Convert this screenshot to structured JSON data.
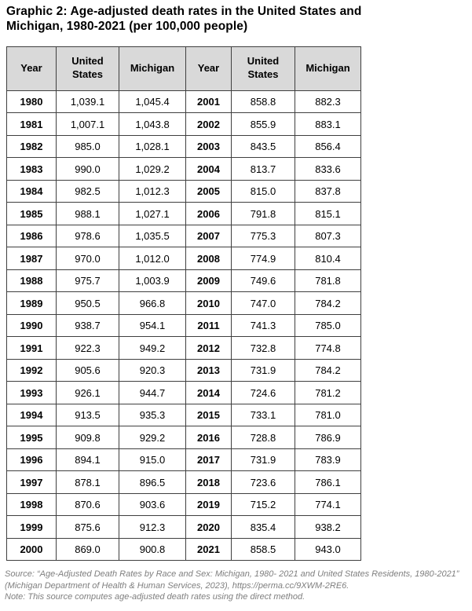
{
  "title": "Graphic 2: Age-adjusted death rates in the United States and Michigan, 1980-2021 (per 100,000 people)",
  "table": {
    "headers": [
      "Year",
      "United States",
      "Michigan",
      "Year",
      "United States",
      "Michigan"
    ],
    "rows": [
      [
        "1980",
        "1,039.1",
        "1,045.4",
        "2001",
        "858.8",
        "882.3"
      ],
      [
        "1981",
        "1,007.1",
        "1,043.8",
        "2002",
        "855.9",
        "883.1"
      ],
      [
        "1982",
        "985.0",
        "1,028.1",
        "2003",
        "843.5",
        "856.4"
      ],
      [
        "1983",
        "990.0",
        "1,029.2",
        "2004",
        "813.7",
        "833.6"
      ],
      [
        "1984",
        "982.5",
        "1,012.3",
        "2005",
        "815.0",
        "837.8"
      ],
      [
        "1985",
        "988.1",
        "1,027.1",
        "2006",
        "791.8",
        "815.1"
      ],
      [
        "1986",
        "978.6",
        "1,035.5",
        "2007",
        "775.3",
        "807.3"
      ],
      [
        "1987",
        "970.0",
        "1,012.0",
        "2008",
        "774.9",
        "810.4"
      ],
      [
        "1988",
        "975.7",
        "1,003.9",
        "2009",
        "749.6",
        "781.8"
      ],
      [
        "1989",
        "950.5",
        "966.8",
        "2010",
        "747.0",
        "784.2"
      ],
      [
        "1990",
        "938.7",
        "954.1",
        "2011",
        "741.3",
        "785.0"
      ],
      [
        "1991",
        "922.3",
        "949.2",
        "2012",
        "732.8",
        "774.8"
      ],
      [
        "1992",
        "905.6",
        "920.3",
        "2013",
        "731.9",
        "784.2"
      ],
      [
        "1993",
        "926.1",
        "944.7",
        "2014",
        "724.6",
        "781.2"
      ],
      [
        "1994",
        "913.5",
        "935.3",
        "2015",
        "733.1",
        "781.0"
      ],
      [
        "1995",
        "909.8",
        "929.2",
        "2016",
        "728.8",
        "786.9"
      ],
      [
        "1996",
        "894.1",
        "915.0",
        "2017",
        "731.9",
        "783.9"
      ],
      [
        "1997",
        "878.1",
        "896.5",
        "2018",
        "723.6",
        "786.1"
      ],
      [
        "1998",
        "870.6",
        "903.6",
        "2019",
        "715.2",
        "774.1"
      ],
      [
        "1999",
        "875.6",
        "912.3",
        "2020",
        "835.4",
        "938.2"
      ],
      [
        "2000",
        "869.0",
        "900.8",
        "2021",
        "858.5",
        "943.0"
      ]
    ]
  },
  "footer": {
    "lines": [
      "Source: “Age-Adjusted Death Rates by Race and Sex: Michigan, 1980- 2021 and United States Residents, 1980-2021”",
      "(Michigan Department of Health & Human Services, 2023), https://perma.cc/9XWM-2RE6.",
      "Note: This source computes age-adjusted death rates using the direct method."
    ]
  },
  "colors": {
    "header_background": "#d9d9d9",
    "border": "#3f3f3f",
    "footer_text": "#7f7f7f"
  },
  "chart_data": {
    "type": "table",
    "title": "Graphic 2: Age-adjusted death rates in the United States and Michigan, 1980-2021 (per 100,000 people)",
    "x": [
      1980,
      1981,
      1982,
      1983,
      1984,
      1985,
      1986,
      1987,
      1988,
      1989,
      1990,
      1991,
      1992,
      1993,
      1994,
      1995,
      1996,
      1997,
      1998,
      1999,
      2000,
      2001,
      2002,
      2003,
      2004,
      2005,
      2006,
      2007,
      2008,
      2009,
      2010,
      2011,
      2012,
      2013,
      2014,
      2015,
      2016,
      2017,
      2018,
      2019,
      2020,
      2021
    ],
    "series": [
      {
        "name": "United States",
        "values": [
          1039.1,
          1007.1,
          985.0,
          990.0,
          982.5,
          988.1,
          978.6,
          970.0,
          975.7,
          950.5,
          938.7,
          922.3,
          905.6,
          926.1,
          913.5,
          909.8,
          894.1,
          878.1,
          870.6,
          875.6,
          869.0,
          858.8,
          855.9,
          843.5,
          813.7,
          815.0,
          791.8,
          775.3,
          774.9,
          749.6,
          747.0,
          741.3,
          732.8,
          731.9,
          724.6,
          733.1,
          728.8,
          731.9,
          723.6,
          715.2,
          835.4,
          858.5
        ]
      },
      {
        "name": "Michigan",
        "values": [
          1045.4,
          1043.8,
          1028.1,
          1029.2,
          1012.3,
          1027.1,
          1035.5,
          1012.0,
          1003.9,
          966.8,
          954.1,
          949.2,
          920.3,
          944.7,
          935.3,
          929.2,
          915.0,
          896.5,
          903.6,
          912.3,
          900.8,
          882.3,
          883.1,
          856.4,
          833.6,
          837.8,
          815.1,
          807.3,
          810.4,
          781.8,
          784.2,
          785.0,
          774.8,
          784.2,
          781.2,
          781.0,
          786.9,
          783.9,
          786.1,
          774.1,
          938.2,
          943.0
        ]
      }
    ],
    "units": "deaths per 100,000 people"
  }
}
